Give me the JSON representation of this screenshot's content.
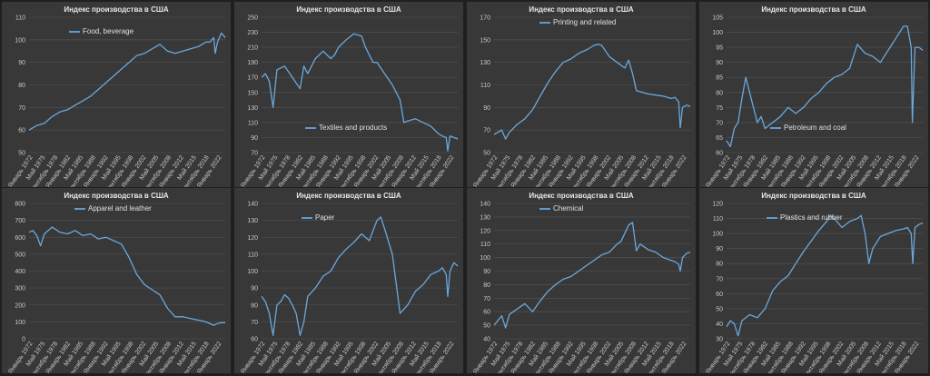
{
  "colors": {
    "background": "#383838",
    "line": "#6aa8dc",
    "grid": "#555555",
    "text": "#e8e8e8"
  },
  "chart_data": [
    {
      "type": "line",
      "title": "Индекс производства в США",
      "series_name": "Food, beverage",
      "legend_position": "top-left",
      "ylim": [
        50,
        110
      ],
      "ystep": 10,
      "x_tick_labels": [
        "Январь 1972",
        "Май 1975",
        "Сентябрь 1978",
        "Январь 1982",
        "Май 1985",
        "Сентябрь 1988",
        "Январь 1992",
        "Май 1995",
        "Сентябрь 1998",
        "Январь 2002",
        "Май 2005",
        "Сентябрь 2008",
        "Январь 2012",
        "Май 2015",
        "Сентябрь 2018",
        "Январь 2022"
      ],
      "x": [
        1972,
        1974,
        1976,
        1978,
        1980,
        1982,
        1984,
        1986,
        1988,
        1990,
        1992,
        1994,
        1996,
        1998,
        2000,
        2002,
        2004,
        2006,
        2008,
        2010,
        2012,
        2014,
        2016,
        2018,
        2019,
        2020,
        2020.4,
        2021,
        2022,
        2023
      ],
      "values": [
        60,
        62,
        63,
        66,
        68,
        69,
        71,
        73,
        75,
        78,
        81,
        84,
        87,
        90,
        93,
        94,
        96,
        98,
        95,
        94,
        95,
        96,
        97,
        99,
        99,
        101,
        94,
        99,
        103,
        101
      ]
    },
    {
      "type": "line",
      "title": "Индекс производства в США",
      "series_name": "Textiles and products",
      "legend_position": "bottom-center",
      "ylim": [
        70,
        250
      ],
      "ystep": 20,
      "x_tick_labels": [
        "Январь 1972",
        "Май 1975",
        "Сентябрь 1978",
        "Январь 1982",
        "Май 1985",
        "Сентябрь 1988",
        "Январь 1992",
        "Май 1995",
        "Сентябрь 1998",
        "Январь 2002",
        "Май 2005",
        "Сентябрь 2008",
        "Январь 2012",
        "Май 2015",
        "Сентябрь 2018",
        "Январь 2022"
      ],
      "x": [
        1972,
        1973,
        1974,
        1975,
        1976,
        1978,
        1980,
        1982,
        1983,
        1984,
        1986,
        1988,
        1990,
        1991,
        1992,
        1994,
        1996,
        1998,
        1999,
        2000,
        2001,
        2002,
        2004,
        2006,
        2008,
        2009,
        2010,
        2012,
        2014,
        2016,
        2018,
        2019,
        2020,
        2020.4,
        2021,
        2022,
        2023
      ],
      "values": [
        170,
        175,
        165,
        130,
        180,
        185,
        170,
        155,
        185,
        175,
        195,
        205,
        195,
        200,
        210,
        220,
        228,
        225,
        210,
        200,
        190,
        190,
        175,
        160,
        140,
        110,
        112,
        115,
        110,
        105,
        95,
        92,
        90,
        72,
        92,
        90,
        88
      ]
    },
    {
      "type": "line",
      "title": "Индекс производства в США",
      "series_name": "Printing and related",
      "legend_position": "top-center",
      "ylim": [
        50,
        170
      ],
      "ystep": 20,
      "x_tick_labels": [
        "Январь 1972",
        "Май 1975",
        "Сентябрь 1978",
        "Январь 1982",
        "Май 1985",
        "Сентябрь 1988",
        "Январь 1992",
        "Май 1995",
        "Сентябрь 1998",
        "Январь 2002",
        "Май 2005",
        "Сентябрь 2008",
        "Январь 2012",
        "Май 2015",
        "Сентябрь 2018",
        "Январь 2022"
      ],
      "x": [
        1972,
        1974,
        1975,
        1976,
        1978,
        1980,
        1982,
        1984,
        1986,
        1988,
        1990,
        1992,
        1994,
        1996,
        1998,
        1999,
        2000,
        2001,
        2002,
        2004,
        2006,
        2007,
        2008,
        2009,
        2010,
        2012,
        2014,
        2016,
        2018,
        2019,
        2020,
        2020.4,
        2021,
        2022,
        2023
      ],
      "values": [
        66,
        70,
        62,
        68,
        75,
        80,
        88,
        100,
        112,
        122,
        130,
        133,
        138,
        141,
        145,
        146,
        145,
        140,
        135,
        130,
        125,
        132,
        120,
        105,
        104,
        102,
        101,
        100,
        98,
        99,
        95,
        72,
        90,
        92,
        91
      ]
    },
    {
      "type": "line",
      "title": "Индекс производства в США",
      "series_name": "Petroleum and coal",
      "legend_position": "bottom-center",
      "ylim": [
        60,
        105
      ],
      "ystep": 5,
      "x_tick_labels": [
        "Январь 1972",
        "Май 1975",
        "Сентябрь 1978",
        "Январь 1982",
        "Май 1985",
        "Сентябрь 1988",
        "Январь 1992",
        "Май 1995",
        "Сентябрь 1998",
        "Январь 2002",
        "Май 2005",
        "Сентябрь 2008",
        "Январь 2012",
        "Май 2015",
        "Сентябрь 2018",
        "Январь 2022"
      ],
      "x": [
        1972,
        1973,
        1974,
        1975,
        1976,
        1977,
        1978,
        1979,
        1980,
        1981,
        1982,
        1984,
        1986,
        1988,
        1990,
        1992,
        1994,
        1996,
        1998,
        2000,
        2002,
        2004,
        2006,
        2008,
        2010,
        2012,
        2014,
        2016,
        2018,
        2019,
        2020,
        2020.3,
        2020.7,
        2021,
        2022,
        2023
      ],
      "values": [
        64,
        62,
        68,
        70,
        78,
        85,
        80,
        75,
        70,
        72,
        68,
        70,
        72,
        75,
        73,
        75,
        78,
        80,
        83,
        85,
        86,
        88,
        96,
        93,
        92,
        90,
        94,
        98,
        102,
        102,
        95,
        70,
        85,
        95,
        95,
        94
      ]
    },
    {
      "type": "line",
      "title": "Индекс производства в США",
      "series_name": "Apparel and leather",
      "legend_position": "top-center",
      "ylim": [
        0,
        800
      ],
      "ystep": 100,
      "x_tick_labels": [
        "Январь 1972",
        "Май 1975",
        "Сентябрь 1978",
        "Январь 1982",
        "Май 1985",
        "Сентябрь 1988",
        "Январь 1992",
        "Май 1995",
        "Сентябрь 1998",
        "Январь 2002",
        "Май 2005",
        "Сентябрь 2008",
        "Январь 2012",
        "Май 2015",
        "Сентябрь 2018",
        "Январь 2022"
      ],
      "x": [
        1972,
        1973,
        1974,
        1975,
        1976,
        1978,
        1980,
        1982,
        1984,
        1986,
        1988,
        1990,
        1992,
        1994,
        1996,
        1997,
        1998,
        1999,
        2000,
        2002,
        2004,
        2006,
        2008,
        2010,
        2012,
        2014,
        2016,
        2018,
        2020,
        2021,
        2022,
        2023
      ],
      "values": [
        630,
        640,
        610,
        550,
        620,
        660,
        630,
        620,
        640,
        610,
        620,
        590,
        600,
        580,
        560,
        520,
        480,
        430,
        380,
        320,
        290,
        260,
        180,
        130,
        130,
        120,
        110,
        100,
        80,
        90,
        95,
        95
      ]
    },
    {
      "type": "line",
      "title": "Индекс производства в США",
      "series_name": "Paper",
      "legend_position": "top-left",
      "ylim": [
        60,
        140
      ],
      "ystep": 10,
      "x_tick_labels": [
        "Январь 1972",
        "Май 1975",
        "Сентябрь 1978",
        "Январь 1982",
        "Май 1985",
        "Сентябрь 1988",
        "Январь 1992",
        "Май 1995",
        "Сентябрь 1998",
        "Январь 2002",
        "Май 2005",
        "Сентябрь 2008",
        "Январь 2012",
        "Май 2015",
        "Сентябрь 2018",
        "Январь 2022"
      ],
      "x": [
        1972,
        1973,
        1974,
        1975,
        1976,
        1977,
        1978,
        1979,
        1980,
        1981,
        1982,
        1983,
        1984,
        1986,
        1988,
        1990,
        1992,
        1994,
        1996,
        1998,
        2000,
        2001,
        2002,
        2003,
        2004,
        2006,
        2008,
        2010,
        2012,
        2014,
        2016,
        2018,
        2019,
        2020,
        2020.4,
        2021,
        2022,
        2023
      ],
      "values": [
        85,
        82,
        75,
        62,
        80,
        82,
        86,
        84,
        80,
        75,
        62,
        70,
        85,
        90,
        97,
        100,
        108,
        113,
        117,
        122,
        118,
        124,
        130,
        132,
        125,
        110,
        75,
        80,
        88,
        92,
        98,
        100,
        102,
        98,
        85,
        100,
        105,
        103
      ]
    },
    {
      "type": "line",
      "title": "Индекс производства в США",
      "series_name": "Chemical",
      "legend_position": "top-center",
      "ylim": [
        40,
        140
      ],
      "ystep": 10,
      "x_tick_labels": [
        "Январь 1972",
        "Май 1975",
        "Сентябрь 1978",
        "Январь 1982",
        "Май 1985",
        "Сентябрь 1988",
        "Январь 1992",
        "Май 1995",
        "Сентябрь 1998",
        "Январь 2002",
        "Май 2005",
        "Сентябрь 2008",
        "Январь 2012",
        "Май 2015",
        "Сентябрь 2018",
        "Январь 2022"
      ],
      "x": [
        1972,
        1974,
        1975,
        1976,
        1978,
        1980,
        1982,
        1984,
        1986,
        1988,
        1990,
        1992,
        1994,
        1996,
        1998,
        2000,
        2002,
        2004,
        2005,
        2006,
        2007,
        2008,
        2009,
        2010,
        2012,
        2014,
        2016,
        2018,
        2019,
        2020,
        2020.4,
        2021,
        2022,
        2023
      ],
      "values": [
        50,
        57,
        48,
        58,
        62,
        66,
        60,
        68,
        75,
        80,
        84,
        86,
        90,
        94,
        98,
        102,
        104,
        110,
        112,
        118,
        124,
        126,
        105,
        110,
        106,
        104,
        100,
        98,
        97,
        95,
        90,
        100,
        103,
        104
      ]
    },
    {
      "type": "line",
      "title": "Индекс производства в США",
      "series_name": "Plastics and rubber",
      "legend_position": "top-left",
      "ylim": [
        30,
        120
      ],
      "ystep": 10,
      "x_tick_labels": [
        "Январь 1972",
        "Май 1975",
        "Сентябрь 1978",
        "Январь 1982",
        "Май 1985",
        "Сентябрь 1988",
        "Январь 1992",
        "Май 1995",
        "Сентябрь 1998",
        "Январь 2002",
        "Май 2005",
        "Сентябрь 2008",
        "Январь 2012",
        "Май 2015",
        "Сентябрь 2018",
        "Январь 2022"
      ],
      "x": [
        1972,
        1973,
        1974,
        1975,
        1976,
        1978,
        1980,
        1982,
        1984,
        1986,
        1988,
        1990,
        1992,
        1994,
        1996,
        1998,
        1999,
        2000,
        2002,
        2004,
        2006,
        2007,
        2008,
        2009,
        2010,
        2012,
        2014,
        2016,
        2018,
        2019,
        2020,
        2020.4,
        2021,
        2022,
        2023
      ],
      "values": [
        38,
        42,
        40,
        32,
        42,
        46,
        44,
        50,
        62,
        68,
        72,
        80,
        88,
        95,
        102,
        108,
        112,
        110,
        104,
        108,
        110,
        112,
        100,
        80,
        90,
        98,
        100,
        102,
        103,
        104,
        100,
        80,
        104,
        106,
        107
      ]
    }
  ]
}
